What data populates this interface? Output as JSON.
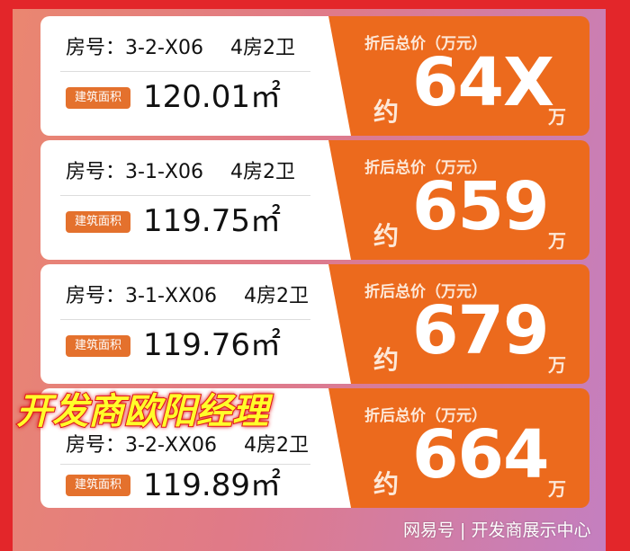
{
  "labels": {
    "room_prefix": "房号：",
    "area_badge": "建筑面积",
    "price_title": "折后总价（万元）",
    "approx": "约",
    "unit_wan": "万",
    "sqm": "m²"
  },
  "cards": [
    {
      "room": "3-2-X06",
      "layout": "4房2卫",
      "area": "120.01",
      "price": "64X"
    },
    {
      "room": "3-1-X06",
      "layout": "4房2卫",
      "area": "119.75",
      "price": "659"
    },
    {
      "room": "3-1-XX06",
      "layout": "4房2卫",
      "area": "119.76",
      "price": "679"
    },
    {
      "room": "3-2-XX06",
      "layout": "4房2卫",
      "area": "119.89",
      "price": "664"
    }
  ],
  "overlay_title": "开发商欧阳经理",
  "watermark": "网易号 | 开发商展示中心",
  "colors": {
    "border": "#e3262a",
    "card_orange": "#ec6a1d",
    "badge": "#e4712d",
    "overlay_text": "#ffff2a"
  }
}
